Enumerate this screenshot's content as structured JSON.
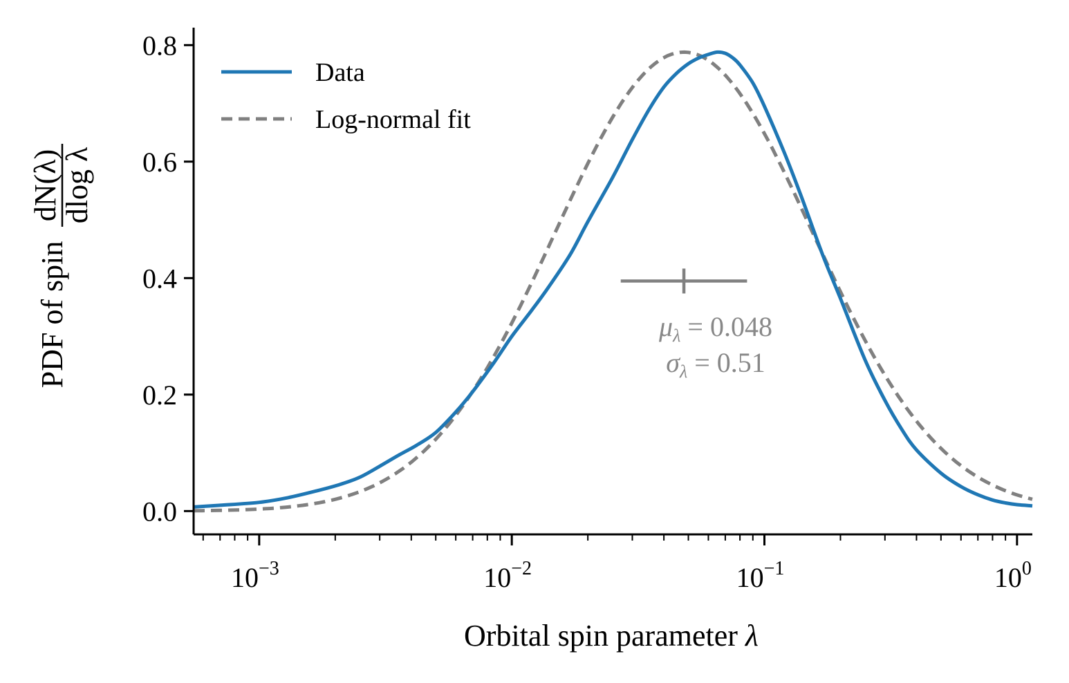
{
  "chart_data": {
    "type": "line",
    "title": "",
    "xlabel": "Orbital spin parameter",
    "xlabel_symbol": "λ",
    "ylabel_prefix": "PDF of spin",
    "ylabel_fraction_numerator": "dN(λ)",
    "ylabel_fraction_denominator": "dlog λ",
    "xscale": "log",
    "xlim": [
      0.00055,
      1.15
    ],
    "ylim": [
      -0.04,
      0.83
    ],
    "xticks": [
      {
        "value": 0.001,
        "base": "10",
        "exp": "−3"
      },
      {
        "value": 0.01,
        "base": "10",
        "exp": "−2"
      },
      {
        "value": 0.1,
        "base": "10",
        "exp": "−1"
      },
      {
        "value": 1,
        "base": "10",
        "exp": "0"
      }
    ],
    "yticks": [
      {
        "value": 0.0,
        "label": "0.0"
      },
      {
        "value": 0.2,
        "label": "0.2"
      },
      {
        "value": 0.4,
        "label": "0.4"
      },
      {
        "value": 0.6,
        "label": "0.6"
      },
      {
        "value": 0.8,
        "label": "0.8"
      }
    ],
    "legend": {
      "position": "top-left",
      "entries": [
        {
          "name": "Data",
          "style": "solid",
          "color": "#1f77b4"
        },
        {
          "name": "Log-normal fit",
          "style": "dashed",
          "color": "#808080"
        }
      ]
    },
    "series": [
      {
        "name": "Data",
        "color": "#1f77b4",
        "style": "solid",
        "x": [
          0.00055,
          0.0007,
          0.001,
          0.0013,
          0.0017,
          0.0021,
          0.0025,
          0.003,
          0.0036,
          0.0042,
          0.005,
          0.006,
          0.007,
          0.0085,
          0.01,
          0.012,
          0.014,
          0.017,
          0.02,
          0.025,
          0.03,
          0.035,
          0.04,
          0.045,
          0.05,
          0.055,
          0.06,
          0.065,
          0.07,
          0.075,
          0.08,
          0.09,
          0.1,
          0.12,
          0.14,
          0.17,
          0.2,
          0.25,
          0.3,
          0.35,
          0.4,
          0.5,
          0.6,
          0.7,
          0.8,
          0.9,
          1.0,
          1.15
        ],
        "y": [
          0.007,
          0.01,
          0.015,
          0.023,
          0.035,
          0.046,
          0.058,
          0.077,
          0.097,
          0.113,
          0.135,
          0.17,
          0.205,
          0.255,
          0.3,
          0.345,
          0.385,
          0.44,
          0.497,
          0.572,
          0.638,
          0.69,
          0.728,
          0.752,
          0.768,
          0.778,
          0.784,
          0.788,
          0.786,
          0.778,
          0.766,
          0.735,
          0.695,
          0.615,
          0.54,
          0.44,
          0.365,
          0.26,
          0.19,
          0.14,
          0.105,
          0.065,
          0.042,
          0.028,
          0.019,
          0.014,
          0.011,
          0.009
        ]
      },
      {
        "name": "Log-normal fit",
        "color": "#808080",
        "style": "dashed",
        "mu": 0.048,
        "sigma": 0.51,
        "amplitude": 0.788
      }
    ],
    "annotation": {
      "marker_center_x": 0.048,
      "marker_y": 0.395,
      "marker_dex": 0.25,
      "mu_symbol": "μ",
      "mu_sub": "λ",
      "mu_text": " = 0.048",
      "sigma_symbol": "σ",
      "sigma_sub": "λ",
      "sigma_text": " = 0.51",
      "color": "#808080"
    }
  }
}
